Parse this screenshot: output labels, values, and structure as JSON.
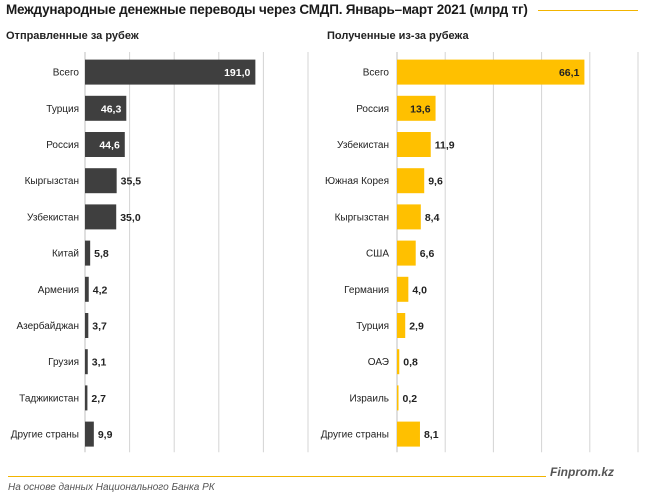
{
  "title": "Международные денежные переводы через СМДП. Январь–март 2021  (млрд тг)",
  "footer_note": "На основе данных  Национального  Банка РК",
  "brand": "Finprom.kz",
  "colors": {
    "sent": "#3f3f3f",
    "received": "#ffc000",
    "rule": "#f2b400",
    "grid": "#d4d4d4"
  },
  "chart_data": [
    {
      "type": "bar",
      "orientation": "horizontal",
      "title": "Отправленные  за рубеж",
      "categories": [
        "Всего",
        "Турция",
        "Россия",
        "Кыргызстан",
        "Узбекистан",
        "Китай",
        "Армения",
        "Азербайджан",
        "Грузия",
        "Таджикистан",
        "Другие страны"
      ],
      "values": [
        191.0,
        46.3,
        44.6,
        35.5,
        35.0,
        5.8,
        4.2,
        3.7,
        3.1,
        2.7,
        9.9
      ],
      "value_labels": [
        "191,0",
        "46,3",
        "44,6",
        "35,5",
        "35,0",
        "5,8",
        "4,2",
        "3,7",
        "3,1",
        "2,7",
        "9,9"
      ],
      "xlim": [
        0,
        250
      ],
      "grid": true
    },
    {
      "type": "bar",
      "orientation": "horizontal",
      "title": "Полученные  из-за рубежа",
      "categories": [
        "Всего",
        "Россия",
        "Узбекистан",
        "Южная Корея",
        "Кыргызстан",
        "США",
        "Германия",
        "Турция",
        "ОАЭ",
        "Израиль",
        "Другие страны"
      ],
      "values": [
        66.1,
        13.6,
        11.9,
        9.6,
        8.4,
        6.6,
        4.0,
        2.9,
        0.8,
        0.2,
        8.1
      ],
      "value_labels": [
        "66,1",
        "13,6",
        "11,9",
        "9,6",
        "8,4",
        "6,6",
        "4,0",
        "2,9",
        "0,8",
        "0,2",
        "8,1"
      ],
      "xlim": [
        0,
        85
      ],
      "grid": true
    }
  ]
}
